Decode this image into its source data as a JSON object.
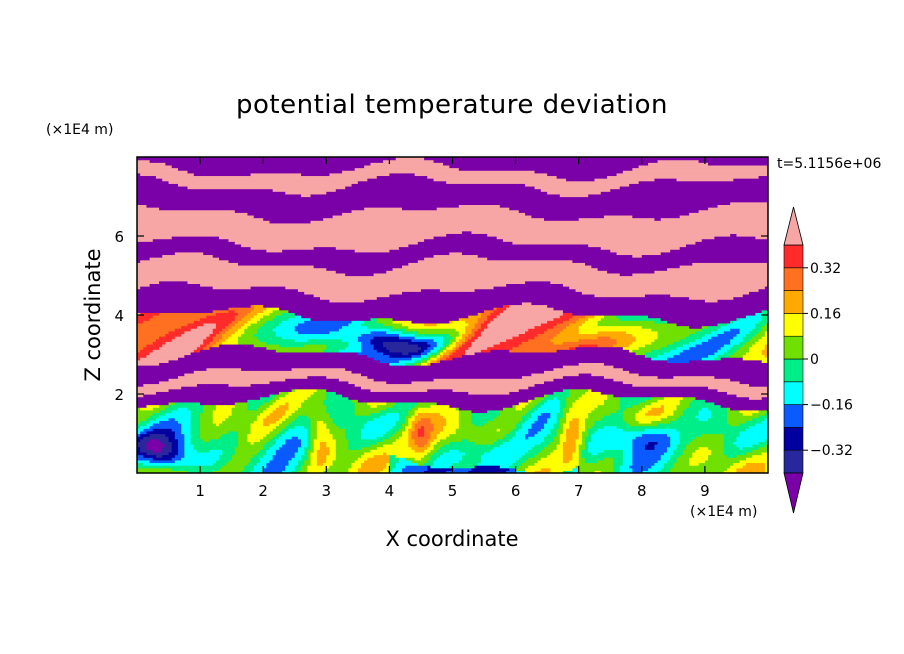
{
  "chart_data": {
    "type": "heatmap",
    "title": "potential temperature deviation",
    "xlabel": "X coordinate",
    "ylabel": "Z coordinate",
    "x_unit": "(×1E4 m)",
    "y_unit": "(×1E4 m)",
    "time_label": "t=5.1156e+06",
    "xlim": [
      0,
      10
    ],
    "ylim": [
      0,
      8
    ],
    "x_ticks": [
      1,
      2,
      3,
      4,
      5,
      6,
      7,
      8,
      9
    ],
    "y_ticks": [
      2,
      4,
      6
    ],
    "x_tick_labels": [
      "1",
      "2",
      "3",
      "4",
      "5",
      "6",
      "7",
      "8",
      "9"
    ],
    "y_tick_labels": [
      "2",
      "4",
      "6"
    ],
    "colorbar": {
      "levels": [
        -0.4,
        -0.32,
        -0.24,
        -0.16,
        -0.08,
        0,
        0.08,
        0.16,
        0.24,
        0.32,
        0.4
      ],
      "labels": [
        "0.32",
        "0.16",
        "0",
        "−0.16",
        "−0.32"
      ],
      "label_values": [
        0.32,
        0.16,
        0,
        -0.16,
        -0.32
      ],
      "colors": [
        "#7a00a8",
        "#28289c",
        "#0000a0",
        "#0a5aff",
        "#00ffff",
        "#00ee88",
        "#70e000",
        "#ffff00",
        "#ffaa00",
        "#ff7020",
        "#ff2a2a",
        "#f7a5a5"
      ],
      "extend": "both"
    },
    "layers": [
      {
        "z_min": 0.0,
        "z_max": 1.8,
        "description_value": -0.05
      },
      {
        "z_min": 1.8,
        "z_max": 2.2,
        "value": -0.45
      },
      {
        "z_min": 2.2,
        "z_max": 2.5,
        "value": 0.45
      },
      {
        "z_min": 2.5,
        "z_max": 3.0,
        "value": -0.45
      },
      {
        "z_min": 3.0,
        "z_max": 4.0,
        "value": 0.2
      },
      {
        "z_min": 4.0,
        "z_max": 4.6,
        "value": -0.45
      },
      {
        "z_min": 4.6,
        "z_max": 5.3,
        "value": 0.45
      },
      {
        "z_min": 5.3,
        "z_max": 5.8,
        "value": -0.45
      },
      {
        "z_min": 5.8,
        "z_max": 6.6,
        "value": 0.45
      },
      {
        "z_min": 6.6,
        "z_max": 7.3,
        "value": -0.45
      },
      {
        "z_min": 7.3,
        "z_max": 7.7,
        "value": 0.45
      },
      {
        "z_min": 7.7,
        "z_max": 8.0,
        "value": -0.45
      }
    ],
    "grid": false,
    "legend": "right"
  }
}
